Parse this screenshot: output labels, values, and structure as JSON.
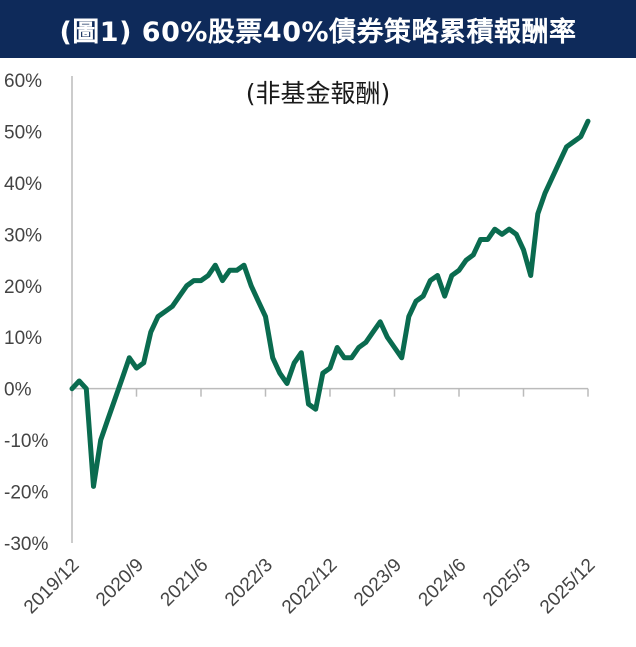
{
  "header": {
    "title": "(圖1) 60%股票40%債券策略累積報酬率"
  },
  "colors": {
    "header_bg": "#0e2a5a",
    "line": "#0a6b4f",
    "axis": "#bbbbbb"
  },
  "chart_data": {
    "type": "line",
    "title": "(圖1) 60%股票40%債券策略累積報酬率",
    "subtitle": "(非基金報酬)",
    "ylabel": "",
    "xlabel": "",
    "ylim": [
      -30,
      60
    ],
    "y_ticks": [
      "60%",
      "50%",
      "40%",
      "30%",
      "20%",
      "10%",
      "0%",
      "-10%",
      "-20%",
      "-30%"
    ],
    "y_tick_values": [
      60,
      50,
      40,
      30,
      20,
      10,
      0,
      -10,
      -20,
      -30
    ],
    "x_range": [
      "2019-12",
      "2025-12"
    ],
    "x_ticks": [
      "2019/12",
      "2020/9",
      "2021/6",
      "2022/3",
      "2022/12",
      "2023/9",
      "2024/6",
      "2025/3",
      "2025/12"
    ],
    "x_tick_dates": [
      "2019-12",
      "2020-09",
      "2021-06",
      "2022-03",
      "2022-12",
      "2023-09",
      "2024-06",
      "2025-03",
      "2025-12"
    ],
    "grid": false,
    "series": [
      {
        "points": [
          [
            "2019-12",
            0
          ],
          [
            "2020-01",
            1.5
          ],
          [
            "2020-02",
            0
          ],
          [
            "2020-03",
            -19
          ],
          [
            "2020-04",
            -10
          ],
          [
            "2020-05",
            -6
          ],
          [
            "2020-06",
            -2
          ],
          [
            "2020-07",
            2
          ],
          [
            "2020-08",
            6
          ],
          [
            "2020-09",
            4
          ],
          [
            "2020-10",
            5
          ],
          [
            "2020-11",
            11
          ],
          [
            "2020-12",
            14
          ],
          [
            "2021-01",
            15
          ],
          [
            "2021-02",
            16
          ],
          [
            "2021-03",
            18
          ],
          [
            "2021-04",
            20
          ],
          [
            "2021-05",
            21
          ],
          [
            "2021-06",
            21
          ],
          [
            "2021-07",
            22
          ],
          [
            "2021-08",
            24
          ],
          [
            "2021-09",
            21
          ],
          [
            "2021-10",
            23
          ],
          [
            "2021-11",
            23
          ],
          [
            "2021-12",
            24
          ],
          [
            "2022-01",
            20
          ],
          [
            "2022-02",
            17
          ],
          [
            "2022-03",
            14
          ],
          [
            "2022-04",
            6
          ],
          [
            "2022-05",
            3
          ],
          [
            "2022-06",
            1
          ],
          [
            "2022-07",
            5
          ],
          [
            "2022-08",
            7
          ],
          [
            "2022-09",
            -3
          ],
          [
            "2022-10",
            -4
          ],
          [
            "2022-11",
            3
          ],
          [
            "2022-12",
            4
          ],
          [
            "2023-01",
            8
          ],
          [
            "2023-02",
            6
          ],
          [
            "2023-03",
            6
          ],
          [
            "2023-04",
            8
          ],
          [
            "2023-05",
            9
          ],
          [
            "2023-06",
            11
          ],
          [
            "2023-07",
            13
          ],
          [
            "2023-08",
            10
          ],
          [
            "2023-09",
            8
          ],
          [
            "2023-10",
            6
          ],
          [
            "2023-11",
            14
          ],
          [
            "2023-12",
            17
          ],
          [
            "2024-01",
            18
          ],
          [
            "2024-02",
            21
          ],
          [
            "2024-03",
            22
          ],
          [
            "2024-04",
            18
          ],
          [
            "2024-05",
            22
          ],
          [
            "2024-06",
            23
          ],
          [
            "2024-07",
            25
          ],
          [
            "2024-08",
            26
          ],
          [
            "2024-09",
            29
          ],
          [
            "2024-10",
            29
          ],
          [
            "2024-11",
            31
          ],
          [
            "2024-12",
            30
          ],
          [
            "2025-01",
            31
          ],
          [
            "2025-02",
            30
          ],
          [
            "2025-03",
            27
          ],
          [
            "2025-04",
            22
          ],
          [
            "2025-05",
            34
          ],
          [
            "2025-06",
            38
          ],
          [
            "2025-07",
            41
          ],
          [
            "2025-08",
            44
          ],
          [
            "2025-09",
            47
          ],
          [
            "2025-10",
            48
          ],
          [
            "2025-11",
            49
          ],
          [
            "2025-12",
            52
          ]
        ]
      }
    ]
  }
}
